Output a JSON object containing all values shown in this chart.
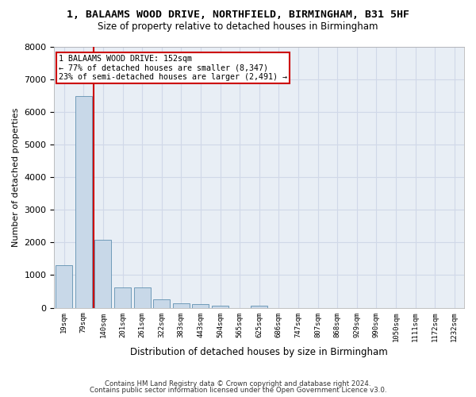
{
  "title_line1": "1, BALAAMS WOOD DRIVE, NORTHFIELD, BIRMINGHAM, B31 5HF",
  "title_line2": "Size of property relative to detached houses in Birmingham",
  "xlabel": "Distribution of detached houses by size in Birmingham",
  "ylabel": "Number of detached properties",
  "bar_color": "#c8d8e8",
  "bar_edge_color": "#6090b0",
  "categories": [
    "19sqm",
    "79sqm",
    "140sqm",
    "201sqm",
    "261sqm",
    "322sqm",
    "383sqm",
    "443sqm",
    "504sqm",
    "565sqm",
    "625sqm",
    "686sqm",
    "747sqm",
    "807sqm",
    "868sqm",
    "929sqm",
    "990sqm",
    "1050sqm",
    "1111sqm",
    "1172sqm",
    "1232sqm"
  ],
  "values": [
    1300,
    6500,
    2080,
    620,
    620,
    250,
    130,
    100,
    70,
    0,
    70,
    0,
    0,
    0,
    0,
    0,
    0,
    0,
    0,
    0,
    0
  ],
  "vline_color": "#cc0000",
  "annotation_text": "1 BALAAMS WOOD DRIVE: 152sqm\n← 77% of detached houses are smaller (8,347)\n23% of semi-detached houses are larger (2,491) →",
  "ylim": [
    0,
    8000
  ],
  "yticks": [
    0,
    1000,
    2000,
    3000,
    4000,
    5000,
    6000,
    7000,
    8000
  ],
  "grid_color": "#d0d8e8",
  "background_color": "#e8eef5",
  "footnote_line1": "Contains HM Land Registry data © Crown copyright and database right 2024.",
  "footnote_line2": "Contains public sector information licensed under the Open Government Licence v3.0."
}
